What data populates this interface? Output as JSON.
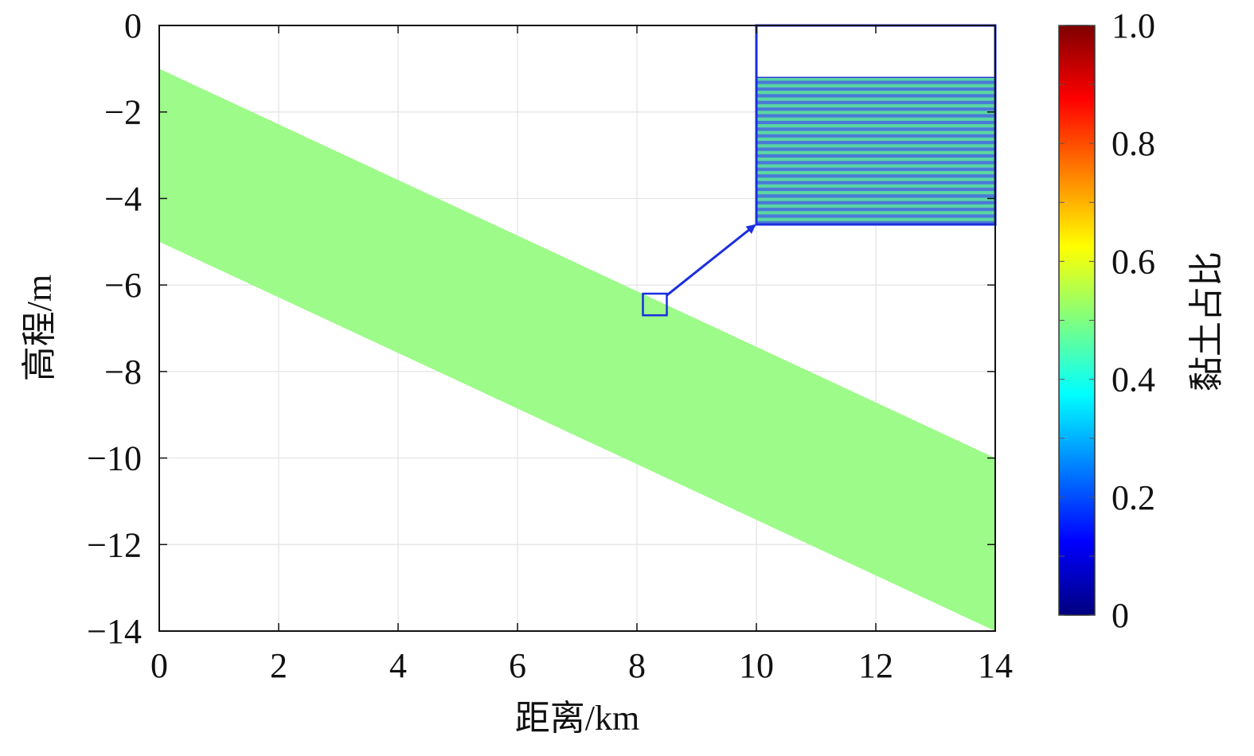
{
  "chart_data": {
    "type": "area",
    "xlabel": "距离/km",
    "ylabel": "高程/m",
    "xlim": [
      0,
      14
    ],
    "ylim": [
      -14,
      0
    ],
    "xticks": [
      "0",
      "2",
      "4",
      "6",
      "8",
      "10",
      "12",
      "14"
    ],
    "yticks": [
      "0",
      "−2",
      "−4",
      "−6",
      "−8",
      "−10",
      "−12",
      "−14"
    ],
    "xtick_values": [
      0,
      2,
      4,
      6,
      8,
      10,
      12,
      14
    ],
    "ytick_values": [
      0,
      -2,
      -4,
      -6,
      -8,
      -10,
      -12,
      -14
    ],
    "layer": {
      "x": [
        0,
        14
      ],
      "top": [
        -1.0,
        -10.0
      ],
      "bottom": [
        -5.0,
        -14.0
      ],
      "clay_ratio": 0.5
    },
    "colorbar": {
      "label": "黏土占比",
      "range": [
        0,
        1.0
      ],
      "ticks": [
        "0",
        "0.2",
        "0.4",
        "0.6",
        "0.8",
        "1.0"
      ],
      "tick_values": [
        0,
        0.2,
        0.4,
        0.6,
        0.8,
        1.0
      ]
    },
    "zoom": {
      "source_x": [
        8.1,
        8.5
      ],
      "source_y": [
        -6.2,
        -6.7
      ],
      "inset_x": [
        10,
        14
      ],
      "inset_y": [
        0,
        -4.6
      ],
      "inset_layer_top": -1.2
    },
    "grid": true,
    "colormap": "jet",
    "layer_color": "#9dfb89",
    "inset_stripe_color_a": "#5ad6a0",
    "inset_stripe_color_b": "#4a78d8",
    "annotation_color": "#1b2ee0"
  }
}
